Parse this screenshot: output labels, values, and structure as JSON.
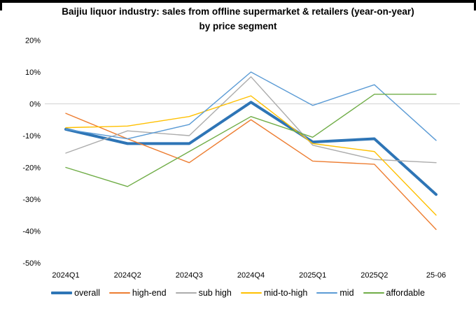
{
  "frame": {
    "top_border_color": "#000000"
  },
  "title": {
    "line1": "Baijiu liquor industry: sales from offline supermarket & retailers (year-on-year)",
    "line2": "by price segment"
  },
  "chart_data": {
    "type": "line",
    "title": "Baijiu liquor industry: sales from offline supermarket & retailers (year-on-year) by price segment",
    "categories": [
      "2024Q1",
      "2024Q2",
      "2024Q3",
      "2024Q4",
      "2025Q1",
      "2025Q2",
      "25-06"
    ],
    "series": [
      {
        "name": "overall",
        "color": "#2E75B6",
        "width": 4,
        "values": [
          -8,
          -12.5,
          -12.5,
          0.5,
          -12,
          -11,
          -28.5
        ]
      },
      {
        "name": "high-end",
        "color": "#ED7D31",
        "width": 1.4,
        "values": [
          -3,
          -11,
          -18.5,
          -5,
          -18,
          -19,
          -39.5
        ]
      },
      {
        "name": "sub high",
        "color": "#ACACAC",
        "width": 1.4,
        "values": [
          -15.5,
          -8.5,
          -10,
          8.5,
          -13,
          -17.5,
          -18.5
        ]
      },
      {
        "name": "mid-to-high",
        "color": "#FFC000",
        "width": 1.4,
        "values": [
          -7.5,
          -7,
          -4,
          2.5,
          -12.5,
          -15,
          -35
        ]
      },
      {
        "name": "mid",
        "color": "#5B9BD5",
        "width": 1.4,
        "values": [
          -8,
          -11,
          -6.5,
          10,
          -0.5,
          6,
          -11.5
        ]
      },
      {
        "name": "affordable",
        "color": "#70AD47",
        "width": 1.4,
        "values": [
          -20,
          -26,
          -15,
          -4,
          -10.5,
          3,
          3
        ]
      }
    ],
    "ylim": [
      -50,
      20
    ],
    "yticks": [
      20,
      10,
      0,
      -10,
      -20,
      -30,
      -40,
      -50
    ],
    "ytick_suffix": "%",
    "gridlines": "zero-line-only",
    "zero_line_color": "#D9D9D9",
    "axis_text_color": "#000000",
    "legend_position": "bottom",
    "xlabel": "",
    "ylabel": ""
  }
}
